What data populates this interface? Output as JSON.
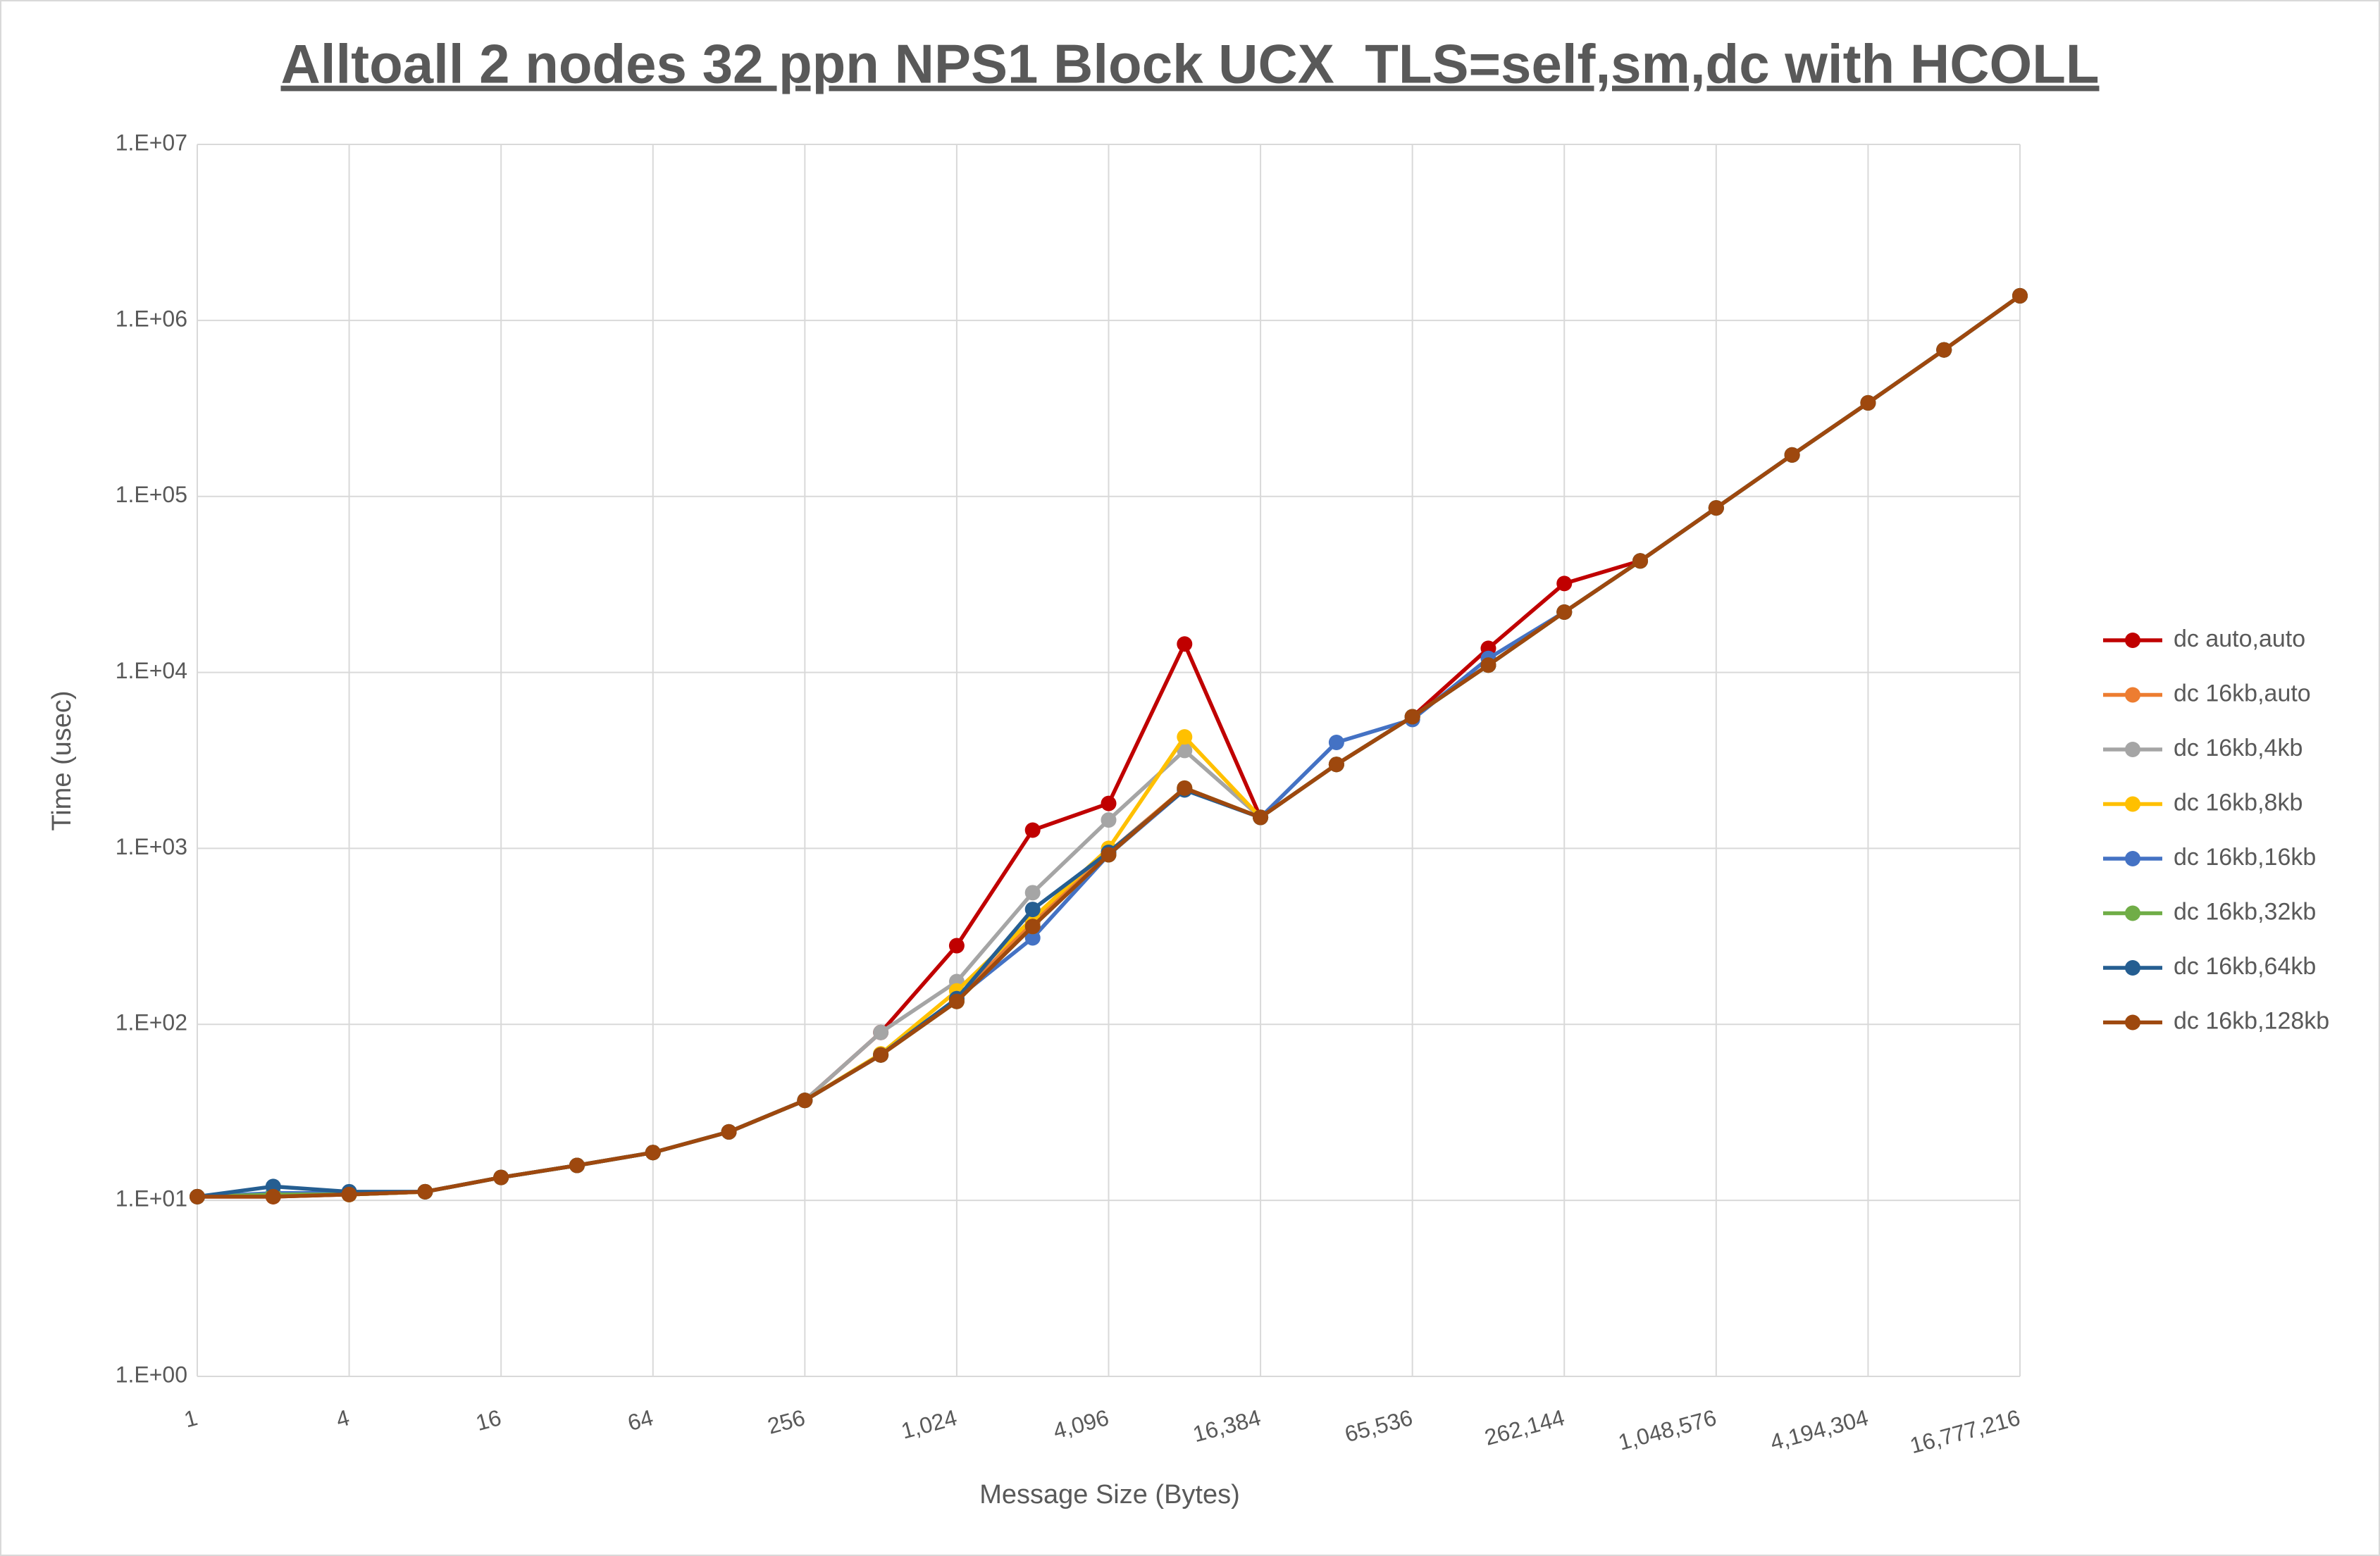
{
  "chart_data": {
    "type": "line",
    "title": "Alltoall 2 nodes 32 ppn NPS1 Block UCX_TLS=self,sm,dc with HCOLL",
    "x_label": "Message Size (Bytes)",
    "y_label": "Time (usec)",
    "x": [
      1,
      2,
      4,
      8,
      16,
      32,
      64,
      128,
      256,
      512,
      1024,
      2048,
      4096,
      8192,
      16384,
      32768,
      65536,
      131072,
      262144,
      524288,
      1048576,
      2097152,
      4194304,
      8388608,
      16777216
    ],
    "xscale": "log",
    "yscale": "log",
    "grid": true,
    "legend": "right",
    "xlim": [
      1,
      16777216
    ],
    "ylim": [
      1,
      10000000
    ],
    "xticks": [
      1,
      4,
      16,
      64,
      256,
      {
        "value": 1024,
        "label": "1,024"
      },
      {
        "value": 4096,
        "label": "4,096"
      },
      {
        "value": 16384,
        "label": "16,384"
      },
      {
        "value": 65536,
        "label": "65,536"
      },
      {
        "value": 262144,
        "label": "262,144"
      },
      {
        "value": 1048576,
        "label": "1,048,576"
      },
      {
        "value": 4194304,
        "label": "4,194,304"
      },
      {
        "value": 16777216,
        "label": "16,777,216"
      }
    ],
    "yticks": [
      {
        "value": 1,
        "label": "1.E+00"
      },
      {
        "value": 10,
        "label": "1.E+01"
      },
      {
        "value": 100,
        "label": "1.E+02"
      },
      {
        "value": 1000,
        "label": "1.E+03"
      },
      {
        "value": 10000,
        "label": "1.E+04"
      },
      {
        "value": 100000,
        "label": "1.E+05"
      },
      {
        "value": 1000000,
        "label": "1.E+06"
      },
      {
        "value": 10000000,
        "label": "1.E+07"
      }
    ],
    "series": [
      {
        "name": "dc auto,auto",
        "color": "#c00000",
        "values": [
          10.5,
          10.5,
          10.8,
          11.2,
          13.5,
          15.8,
          18.7,
          24.5,
          37,
          90,
          280,
          1270,
          1800,
          14500,
          1500,
          3000,
          5600,
          13700,
          32000,
          43000,
          86000,
          172000,
          340000,
          680000,
          1380000
        ]
      },
      {
        "name": "dc 16kb,auto",
        "color": "#ed7d31",
        "values": [
          10.5,
          10.8,
          10.8,
          11.2,
          13.5,
          15.8,
          18.7,
          24.5,
          37,
          67,
          140,
          380,
          950,
          2200,
          1500,
          3000,
          5600,
          11000,
          22000,
          43000,
          86000,
          172000,
          340000,
          680000,
          1380000
        ]
      },
      {
        "name": "dc 16kb,4kb",
        "color": "#a5a5a5",
        "values": [
          10.5,
          10.8,
          10.8,
          11.2,
          13.5,
          15.8,
          18.7,
          24.5,
          37,
          90,
          175,
          560,
          1450,
          3600,
          1500,
          3000,
          5600,
          11000,
          22000,
          43000,
          86000,
          172000,
          340000,
          680000,
          1380000
        ]
      },
      {
        "name": "dc 16kb,8kb",
        "color": "#ffc000",
        "values": [
          10.5,
          10.8,
          10.8,
          11.2,
          13.5,
          15.8,
          18.7,
          24.5,
          37,
          68,
          155,
          400,
          1000,
          4300,
          1500,
          3000,
          5600,
          11000,
          22000,
          43000,
          86000,
          172000,
          340000,
          680000,
          1380000
        ]
      },
      {
        "name": "dc 16kb,16kb",
        "color": "#4472c4",
        "values": [
          10.5,
          11,
          11,
          11.2,
          13.5,
          15.8,
          18.7,
          24.5,
          37,
          67,
          140,
          310,
          920,
          2150,
          1500,
          4000,
          5400,
          12000,
          22000,
          43000,
          86000,
          172000,
          340000,
          680000,
          1380000
        ]
      },
      {
        "name": "dc 16kb,32kb",
        "color": "#70ad47",
        "values": [
          10.5,
          10.8,
          10.8,
          11.2,
          13.5,
          15.8,
          18.7,
          24.5,
          37,
          67,
          135,
          360,
          920,
          2200,
          1500,
          3000,
          5600,
          11000,
          22000,
          43000,
          86000,
          172000,
          340000,
          680000,
          1380000
        ]
      },
      {
        "name": "dc 16kb,64kb",
        "color": "#255e91",
        "values": [
          10.5,
          12,
          11.2,
          11.2,
          13.5,
          15.8,
          18.7,
          24.5,
          37,
          67,
          140,
          450,
          950,
          2150,
          1500,
          3000,
          5600,
          11000,
          22000,
          43000,
          86000,
          172000,
          340000,
          680000,
          1380000
        ]
      },
      {
        "name": "dc 16kb,128kb",
        "color": "#9e480e",
        "values": [
          10.5,
          10.5,
          10.8,
          11.2,
          13.5,
          15.8,
          18.7,
          24.5,
          37,
          67,
          135,
          360,
          920,
          2200,
          1500,
          3000,
          5600,
          11000,
          22000,
          43000,
          86000,
          172000,
          340000,
          680000,
          1380000
        ]
      }
    ]
  }
}
